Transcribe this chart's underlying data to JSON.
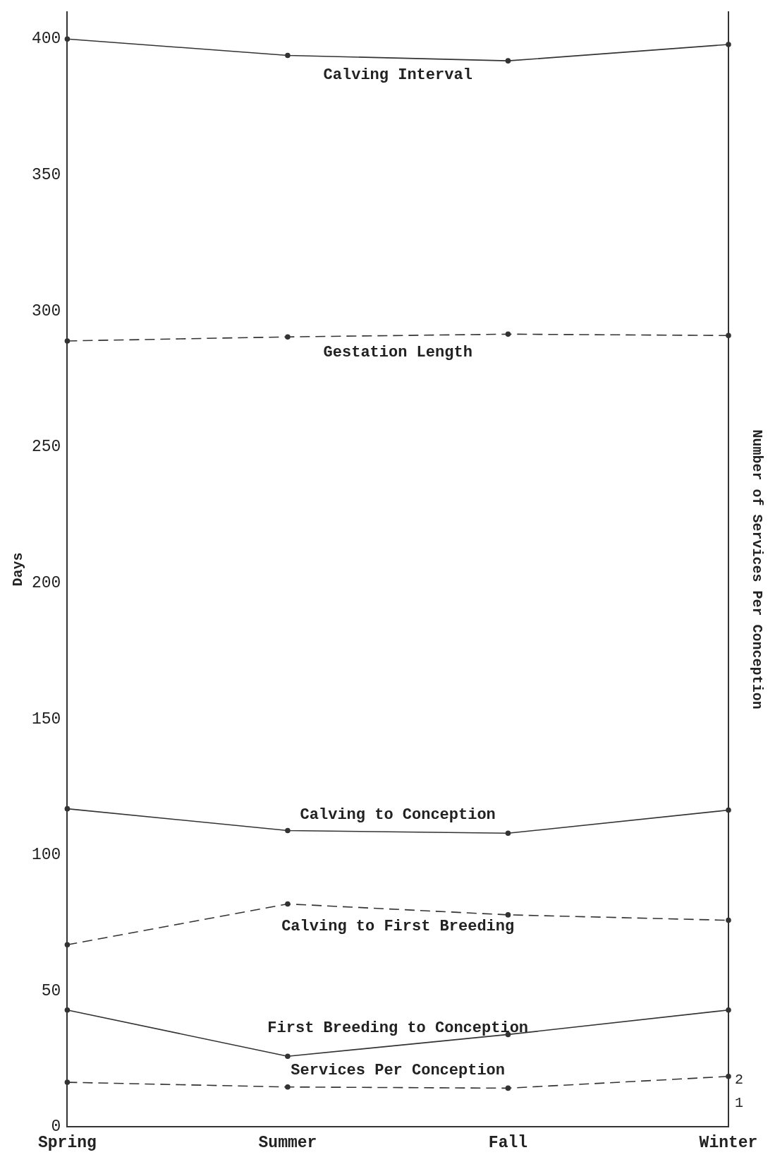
{
  "chart_data": {
    "type": "line",
    "ylabel": "Days",
    "y2label": "Number of Services Per Conception",
    "categories": [
      "Spring",
      "Summer",
      "Fall",
      "Winter"
    ],
    "ylim": [
      0,
      410
    ],
    "yticks": [
      0,
      50,
      100,
      150,
      200,
      250,
      300,
      350,
      400
    ],
    "y2lim": [
      0,
      47.4
    ],
    "y2ticks": [
      1,
      2
    ],
    "grid": false,
    "legend": false,
    "marker": "circle",
    "series": [
      {
        "name": "Calving Interval",
        "color": "#333333",
        "line_style": "solid",
        "values": [
          400,
          394,
          392,
          398
        ]
      },
      {
        "name": "Gestation Length",
        "color": "#333333",
        "line_style": "dashed",
        "values": [
          289,
          290.5,
          291.5,
          291
        ]
      },
      {
        "name": "Calving to Conception",
        "color": "#333333",
        "line_style": "solid",
        "values": [
          117,
          109,
          108,
          116.5
        ]
      },
      {
        "name": "Calving to First Breeding",
        "color": "#333333",
        "line_style": "dashed",
        "values": [
          67,
          82,
          78,
          76
        ]
      },
      {
        "name": "First Breeding to Conception",
        "color": "#333333",
        "line_style": "solid",
        "values": [
          43,
          26,
          34,
          43
        ]
      },
      {
        "name": "Services Per Conception",
        "color": "#333333",
        "line_style": "dashed",
        "axis": "y2",
        "values": [
          1.9,
          1.7,
          1.65,
          2.15
        ]
      }
    ]
  }
}
